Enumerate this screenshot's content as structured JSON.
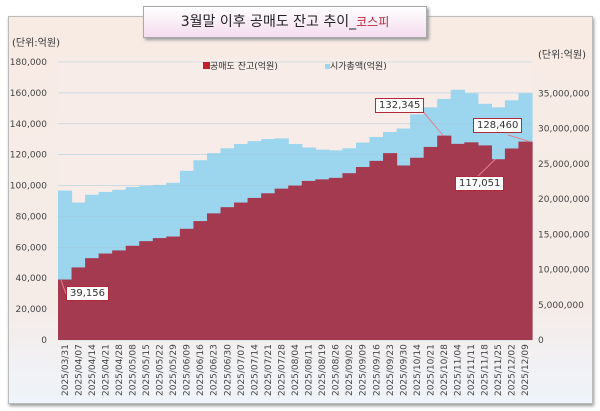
{
  "title": {
    "main": "3월말 이후 공매도 잔고 추이_",
    "sub": "코스피"
  },
  "units": {
    "left": "(단위:억원)",
    "right": "(단위:억원)"
  },
  "colors": {
    "short": "#a43a50",
    "mcap": "#9cd6ee",
    "short_legend": "#c0202a"
  },
  "chart_data": {
    "type": "area",
    "categories": [
      "2025/03/31",
      "2025/04/07",
      "2025/04/14",
      "2025/04/21",
      "2025/04/28",
      "2025/05/08",
      "2025/05/15",
      "2025/05/22",
      "2025/05/29",
      "2025/06/09",
      "2025/06/16",
      "2025/06/23",
      "2025/06/30",
      "2025/07/07",
      "2025/07/14",
      "2025/07/21",
      "2025/07/28",
      "2025/08/04",
      "2025/08/11",
      "2025/08/19",
      "2025/08/26",
      "2025/09/02",
      "2025/09/09",
      "2025/09/16",
      "2025/09/23",
      "2025/09/30",
      "2025/10/14",
      "2025/10/21",
      "2025/10/28",
      "2025/11/04",
      "2025/11/11",
      "2025/11/18",
      "2025/11/25",
      "2025/12/02",
      "2025/12/09"
    ],
    "series": [
      {
        "name": "공매도 잔고(억원)",
        "axis": "left",
        "values": [
          39156,
          47000,
          53000,
          56000,
          58000,
          61000,
          64000,
          66000,
          67000,
          72000,
          77000,
          82000,
          86000,
          89000,
          92000,
          95000,
          98000,
          100000,
          103000,
          104000,
          105000,
          108000,
          112000,
          116000,
          121000,
          113000,
          118000,
          125000,
          132345,
          127000,
          128000,
          126000,
          117051,
          124000,
          128460
        ]
      },
      {
        "name": "시가총액(억원)",
        "axis": "right",
        "values": [
          21200000,
          19500000,
          20600000,
          21000000,
          21300000,
          21700000,
          21900000,
          22000000,
          22300000,
          24000000,
          25500000,
          26500000,
          27200000,
          27800000,
          28200000,
          28500000,
          28600000,
          27800000,
          27300000,
          27000000,
          26900000,
          27200000,
          28000000,
          28800000,
          29500000,
          30000000,
          32000000,
          33000000,
          34200000,
          35500000,
          35000000,
          33500000,
          33000000,
          34000000,
          35000000
        ]
      }
    ],
    "left_axis": {
      "ylim": [
        0,
        180000
      ],
      "ticks": [
        "0",
        "20,000",
        "40,000",
        "60,000",
        "80,000",
        "100,000",
        "120,000",
        "140,000",
        "160,000",
        "180,000"
      ]
    },
    "right_axis": {
      "ylim": [
        0,
        40000000
      ],
      "ticks": [
        "0",
        "5,000,000",
        "10,000,000",
        "15,000,000",
        "20,000,000",
        "25,000,000",
        "30,000,000",
        "35,000,000"
      ]
    },
    "annotations": [
      "39,156",
      "132,345",
      "128,460",
      "117,051"
    ],
    "grid": true,
    "legend": "top-center"
  }
}
